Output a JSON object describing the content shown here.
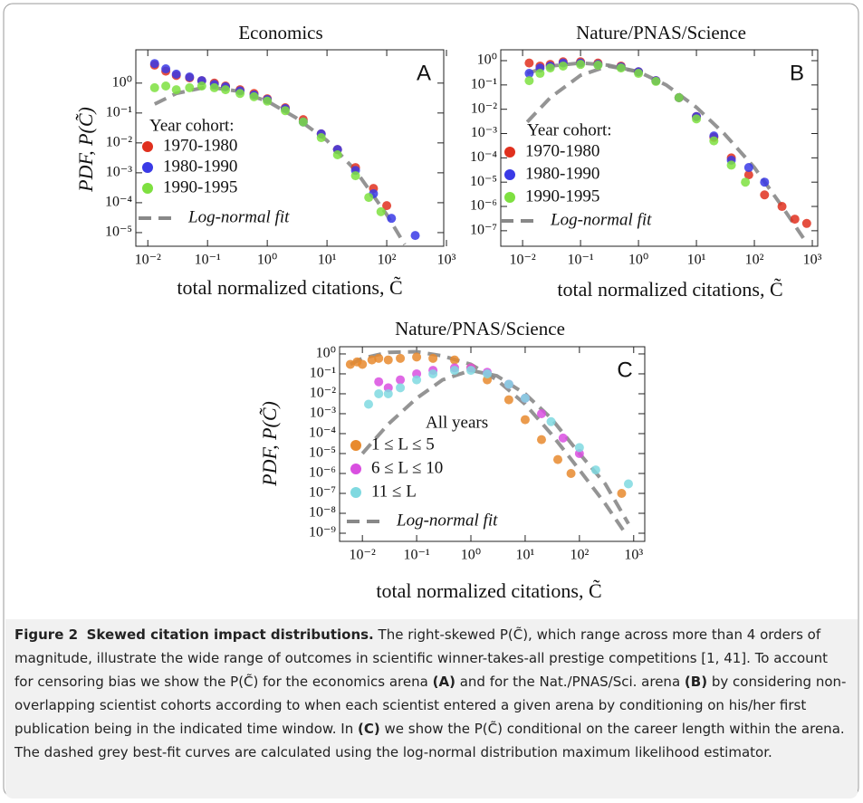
{
  "chart_data": [
    {
      "type": "scatter",
      "title": "Economics",
      "panel_label": "A",
      "xlabel": "total normalized citations, C̃",
      "ylabel": "PDF, P(C̃)",
      "log": true,
      "xlim": [
        0.0063,
        900
      ],
      "ylim": [
        3.5e-06,
        13
      ],
      "xticks": [
        {
          "value": 0.01,
          "label": "10⁻²"
        },
        {
          "value": 0.1,
          "label": "10⁻¹"
        },
        {
          "value": 1,
          "label": "10⁰"
        },
        {
          "value": 10,
          "label": "10¹"
        },
        {
          "value": 100,
          "label": "10²"
        },
        {
          "value": 1000,
          "label": "10³"
        }
      ],
      "yticks": [
        {
          "value": 1,
          "label": "10⁰"
        },
        {
          "value": 0.1,
          "label": "10⁻¹"
        },
        {
          "value": 0.01,
          "label": "10⁻²"
        },
        {
          "value": 0.001,
          "label": "10⁻³"
        },
        {
          "value": 0.0001,
          "label": "10⁻⁴"
        },
        {
          "value": 1e-05,
          "label": "10⁻⁵"
        }
      ],
      "legend_title": "Year cohort:",
      "series": [
        {
          "name": "1970-1980",
          "color": "#e0301e",
          "x": [
            0.013,
            0.02,
            0.03,
            0.05,
            0.08,
            0.13,
            0.2,
            0.35,
            0.6,
            1,
            2,
            4,
            8,
            15,
            30,
            60,
            100
          ],
          "values": [
            4,
            2.5,
            1.8,
            1.5,
            1.2,
            1.0,
            0.8,
            0.6,
            0.45,
            0.3,
            0.15,
            0.06,
            0.02,
            0.006,
            0.0015,
            0.0003,
            8e-05
          ]
        },
        {
          "name": "1980-1990",
          "color": "#3a3ae6",
          "x": [
            0.013,
            0.02,
            0.03,
            0.05,
            0.08,
            0.13,
            0.2,
            0.35,
            0.6,
            1,
            2,
            4,
            8,
            15,
            30,
            60,
            120,
            300
          ],
          "values": [
            4.5,
            3,
            2,
            1.6,
            1.2,
            0.9,
            0.75,
            0.55,
            0.4,
            0.28,
            0.14,
            0.05,
            0.02,
            0.006,
            0.0012,
            0.0002,
            3e-05,
            8e-06
          ]
        },
        {
          "name": "1990-1995",
          "color": "#7ee040",
          "x": [
            0.013,
            0.02,
            0.03,
            0.05,
            0.08,
            0.13,
            0.2,
            0.35,
            0.6,
            1,
            2,
            4,
            8,
            15,
            30,
            50,
            80
          ],
          "values": [
            0.7,
            0.8,
            0.6,
            0.7,
            0.8,
            0.7,
            0.6,
            0.45,
            0.35,
            0.25,
            0.12,
            0.05,
            0.015,
            0.004,
            0.0008,
            0.00015,
            5e-05
          ]
        }
      ],
      "fits": {
        "name": "Log-normal fit",
        "color": "#888888",
        "curves": [
          {
            "x": [
              0.013,
              0.03,
              0.1,
              0.3,
              1,
              3,
              10,
              30,
              100,
              200
            ],
            "values": [
              0.2,
              0.45,
              0.75,
              0.55,
              0.25,
              0.07,
              0.012,
              0.0012,
              4e-05,
              4e-06
            ]
          }
        ]
      }
    },
    {
      "type": "scatter",
      "title": "Nature/PNAS/Science",
      "panel_label": "B",
      "xlabel": "total normalized citations, C̃",
      "log": true,
      "xlim": [
        0.0042,
        1240
      ],
      "ylim": [
        2.3e-08,
        2.8
      ],
      "xticks": [
        {
          "value": 0.01,
          "label": "10⁻²"
        },
        {
          "value": 0.1,
          "label": "10⁻¹"
        },
        {
          "value": 1,
          "label": "10⁰"
        },
        {
          "value": 10,
          "label": "10¹"
        },
        {
          "value": 100,
          "label": "10²"
        },
        {
          "value": 1000,
          "label": "10³"
        }
      ],
      "yticks": [
        {
          "value": 1,
          "label": "10⁰"
        },
        {
          "value": 0.1,
          "label": "10⁻¹"
        },
        {
          "value": 0.01,
          "label": "10⁻²"
        },
        {
          "value": 0.001,
          "label": "10⁻³"
        },
        {
          "value": 0.0001,
          "label": "10⁻⁴"
        },
        {
          "value": 1e-05,
          "label": "10⁻⁵"
        },
        {
          "value": 1e-06,
          "label": "10⁻⁶"
        },
        {
          "value": 1e-07,
          "label": "10⁻⁷"
        }
      ],
      "legend_title": "Year cohort:",
      "series": [
        {
          "name": "1970-1980",
          "color": "#e0301e",
          "x": [
            0.013,
            0.02,
            0.03,
            0.05,
            0.1,
            0.2,
            0.5,
            1,
            2,
            5,
            10,
            20,
            40,
            80,
            150,
            300,
            500,
            800
          ],
          "values": [
            0.8,
            0.6,
            0.7,
            0.9,
            0.9,
            0.8,
            0.6,
            0.35,
            0.15,
            0.03,
            0.005,
            0.0007,
            0.0001,
            2e-05,
            3e-06,
            1e-06,
            3e-07,
            2e-07
          ]
        },
        {
          "name": "1980-1990",
          "color": "#3a3ae6",
          "x": [
            0.013,
            0.02,
            0.03,
            0.05,
            0.1,
            0.2,
            0.5,
            1,
            2,
            5,
            10,
            20,
            40,
            80,
            150
          ],
          "values": [
            0.3,
            0.5,
            0.6,
            0.8,
            0.8,
            0.7,
            0.55,
            0.35,
            0.15,
            0.03,
            0.005,
            0.0008,
            8e-05,
            4e-05,
            1e-05
          ]
        },
        {
          "name": "1990-1995",
          "color": "#7ee040",
          "x": [
            0.013,
            0.02,
            0.03,
            0.05,
            0.1,
            0.2,
            0.5,
            1,
            2,
            5,
            10,
            20,
            40,
            70
          ],
          "values": [
            0.15,
            0.3,
            0.5,
            0.6,
            0.7,
            0.65,
            0.5,
            0.3,
            0.14,
            0.03,
            0.004,
            0.0005,
            5e-05,
            1e-05
          ]
        }
      ],
      "fits": {
        "name": "Log-normal fit",
        "color": "#888888",
        "curves": [
          {
            "x": [
              0.012,
              0.03,
              0.1,
              0.3,
              1,
              3,
              10,
              30,
              100,
              300,
              700
            ],
            "values": [
              0.3,
              0.6,
              0.8,
              0.65,
              0.35,
              0.1,
              0.012,
              0.001,
              4e-05,
              1e-06,
              5e-08
            ]
          },
          {
            "x": [
              0.012,
              0.03,
              0.1,
              0.3,
              1
            ],
            "values": [
              0.003,
              0.03,
              0.25,
              0.6,
              0.35
            ]
          }
        ]
      }
    },
    {
      "type": "scatter",
      "title": "Nature/PNAS/Science",
      "panel_label": "C",
      "xlabel": "total normalized citations, C̃",
      "ylabel": "PDF, P(C̃)",
      "log": true,
      "xlim": [
        0.0038,
        1600
      ],
      "ylim": [
        3.9e-10,
        2.3
      ],
      "xticks": [
        {
          "value": 0.01,
          "label": "10⁻²"
        },
        {
          "value": 0.1,
          "label": "10⁻¹"
        },
        {
          "value": 1,
          "label": "10⁰"
        },
        {
          "value": 10,
          "label": "10¹"
        },
        {
          "value": 100,
          "label": "10²"
        },
        {
          "value": 1000,
          "label": "10³"
        }
      ],
      "yticks": [
        {
          "value": 1,
          "label": "10⁰"
        },
        {
          "value": 0.1,
          "label": "10⁻¹"
        },
        {
          "value": 0.01,
          "label": "10⁻²"
        },
        {
          "value": 0.001,
          "label": "10⁻³"
        },
        {
          "value": 0.0001,
          "label": "10⁻⁴"
        },
        {
          "value": 1e-05,
          "label": "10⁻⁵"
        },
        {
          "value": 1e-06,
          "label": "10⁻⁶"
        },
        {
          "value": 1e-07,
          "label": "10⁻⁷"
        },
        {
          "value": 1e-08,
          "label": "10⁻⁸"
        },
        {
          "value": 1e-09,
          "label": "10⁻⁹"
        }
      ],
      "legend_title": "All years",
      "series": [
        {
          "name": "1 ≤ L ≤ 5",
          "color": "#e88a2e",
          "x": [
            0.006,
            0.008,
            0.01,
            0.015,
            0.02,
            0.03,
            0.05,
            0.1,
            0.2,
            0.5,
            1,
            2,
            5,
            10,
            20,
            40,
            70,
            600
          ],
          "values": [
            0.3,
            0.4,
            0.3,
            0.5,
            0.6,
            0.5,
            0.6,
            0.7,
            0.6,
            0.5,
            0.2,
            0.05,
            0.005,
            0.0005,
            5e-05,
            5e-06,
            1e-06,
            1e-07
          ]
        },
        {
          "name": "6 ≤ L ≤ 10",
          "color": "#d94fe0",
          "x": [
            0.02,
            0.03,
            0.05,
            0.1,
            0.2,
            0.5,
            1,
            2,
            5,
            10,
            20,
            50,
            100
          ],
          "values": [
            0.04,
            0.02,
            0.05,
            0.1,
            0.15,
            0.2,
            0.2,
            0.12,
            0.03,
            0.006,
            0.001,
            6e-05,
            1e-05
          ]
        },
        {
          "name": "11 ≤ L",
          "color": "#7fd9e0",
          "x": [
            0.013,
            0.02,
            0.03,
            0.05,
            0.1,
            0.2,
            0.5,
            1,
            2,
            5,
            10,
            30,
            100,
            200,
            800
          ],
          "values": [
            0.003,
            0.01,
            0.01,
            0.02,
            0.05,
            0.1,
            0.15,
            0.15,
            0.1,
            0.03,
            0.006,
            0.0004,
            2e-05,
            1.5e-06,
            3e-07
          ]
        }
      ],
      "fits": {
        "name": "Log-normal fit",
        "color": "#888888",
        "curves": [
          {
            "x": [
              0.006,
              0.01,
              0.03,
              0.1,
              0.3,
              1,
              3,
              10,
              30,
              100,
              300,
              700
            ],
            "values": [
              0.3,
              0.6,
              1.2,
              1.3,
              0.8,
              0.3,
              0.05,
              0.003,
              0.0001,
              1.5e-06,
              3e-08,
              1e-09
            ]
          },
          {
            "x": [
              0.01,
              0.03,
              0.1,
              0.3,
              1,
              3,
              10,
              30,
              100,
              300,
              800
            ],
            "values": [
              1e-05,
              0.0003,
              0.006,
              0.05,
              0.15,
              0.08,
              0.01,
              0.0006,
              1e-05,
              3e-07,
              3e-09
            ]
          }
        ]
      }
    }
  ],
  "caption": {
    "label": "Figure 2",
    "title": "Skewed citation impact distributions.",
    "text": [
      "The right-skewed P(C̃), which range across more than 4 orders of magnitude, illustrate the wide range of outcomes in scientific winner-takes-all prestige competitions [1, 41]. To account for censoring bias we show the P(C̃) for the economics arena",
      "(A)",
      "and for the Nat./PNAS/Sci. arena",
      "(B)",
      "by considering non-overlapping scientist cohorts according to when each scientist entered a given arena by conditioning on his/her first publication being in the indicated time window. In",
      "(C)",
      "we show the P(C̃) conditional on the career length within the arena. The dashed grey best-fit curves are calculated using the log-normal distribution maximum likelihood estimator."
    ]
  }
}
